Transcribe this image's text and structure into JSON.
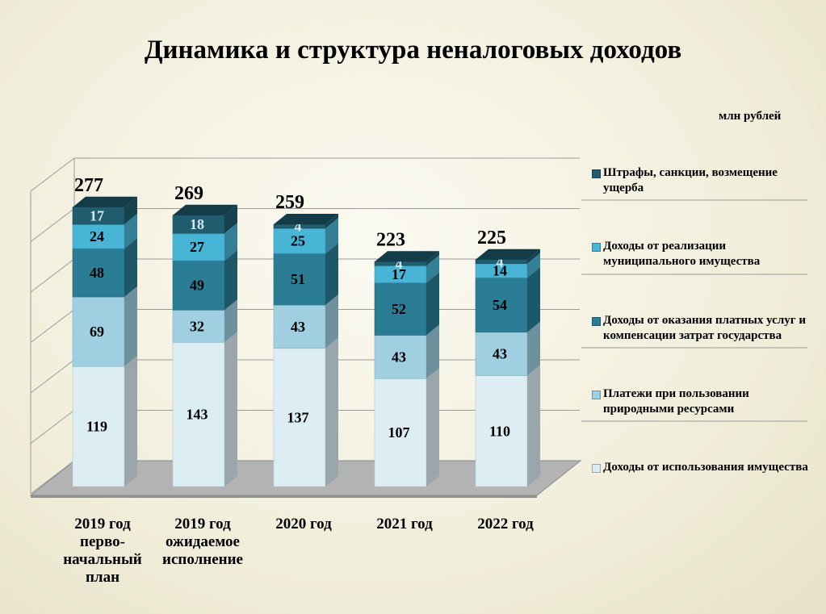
{
  "title": "Динамика  и  структура неналоговых доходов",
  "unit": "млн рублей",
  "chart_data": {
    "type": "bar",
    "stacked": true,
    "categories": [
      "2019 год\nперво-\nначальный\nплан",
      "2019 год\nожидаемое\nисполнение",
      "2020 год",
      "2021 год",
      "2022 год"
    ],
    "series": [
      {
        "name": "Доходы от использования имущества",
        "values": [
          119,
          143,
          137,
          107,
          110
        ],
        "color": "#dcedf4",
        "label_color": "#000000"
      },
      {
        "name": "Платежи при пользовании природными ресурсами",
        "values": [
          69,
          32,
          43,
          43,
          43
        ],
        "color": "#9fcfe0",
        "label_color": "#000000"
      },
      {
        "name": "Доходы от оказания платных услуг и компенсации затрат государства",
        "values": [
          48,
          49,
          51,
          52,
          54
        ],
        "color": "#2a7d95",
        "label_color": "#000000"
      },
      {
        "name": "Доходы от реализации муниципального имущества",
        "values": [
          24,
          27,
          25,
          17,
          14
        ],
        "color": "#49b5d6",
        "label_color": "#000000"
      },
      {
        "name": "Штрафы, санкции, возмещение ущерба",
        "values": [
          17,
          18,
          4,
          4,
          4
        ],
        "color": "#1f5d6f",
        "label_color": "#d6e8ef"
      }
    ],
    "totals": [
      277,
      269,
      259,
      223,
      225
    ],
    "ylim": [
      0,
      300
    ],
    "grid": true,
    "legend_position": "right"
  }
}
